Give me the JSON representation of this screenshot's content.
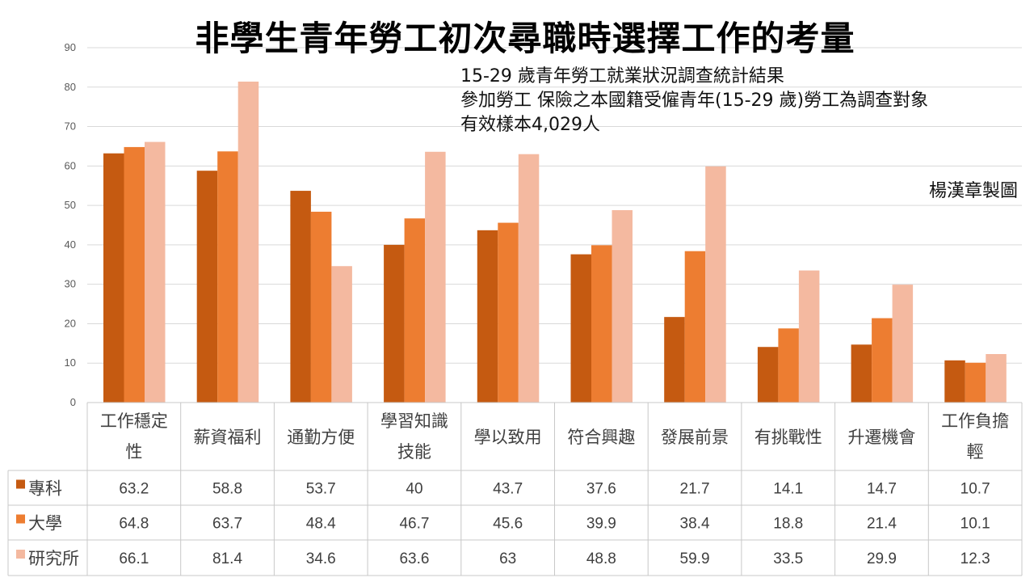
{
  "title": "非學生青年勞工初次尋職時選擇工作的考量",
  "subtitle_lines": [
    "15-29 歲青年勞工就業狀況調查統計結果",
    "參加勞工 保險之本國籍受僱青年(15-29 歲)勞工為調查對象",
    "有效樣本4,029人"
  ],
  "credit": "楊漢章製圖",
  "chart_data": {
    "type": "bar",
    "title": "非學生青年勞工初次尋職時選擇工作的考量",
    "categories": [
      "工作穩定性",
      "薪資福利",
      "通勤方便",
      "學習知識技能",
      "學以致用",
      "符合興趣",
      "發展前景",
      "有挑戰性",
      "升遷機會",
      "工作負擔輕"
    ],
    "category_lines": [
      [
        "工作穩定",
        "性"
      ],
      [
        "薪資福利"
      ],
      [
        "通勤方便"
      ],
      [
        "學習知識",
        "技能"
      ],
      [
        "學以致用"
      ],
      [
        "符合興趣"
      ],
      [
        "發展前景"
      ],
      [
        "有挑戰性"
      ],
      [
        "升遷機會"
      ],
      [
        "工作負擔",
        "輕"
      ]
    ],
    "series": [
      {
        "name": "專科",
        "color": "#C55A11",
        "values": [
          63.2,
          58.8,
          53.7,
          40,
          43.7,
          37.6,
          21.7,
          14.1,
          14.7,
          10.7
        ]
      },
      {
        "name": "大學",
        "color": "#ED7D31",
        "values": [
          64.8,
          63.7,
          48.4,
          46.7,
          45.6,
          39.9,
          38.4,
          18.8,
          21.4,
          10.1
        ]
      },
      {
        "name": "研究所",
        "color": "#F4B9A0",
        "values": [
          66.1,
          81.4,
          34.6,
          63.6,
          63,
          48.8,
          59.9,
          33.5,
          29.9,
          12.3
        ]
      }
    ],
    "ylim": [
      0,
      90
    ],
    "yticks": [
      0,
      10,
      20,
      30,
      40,
      50,
      60,
      70,
      80,
      90
    ],
    "grid": true,
    "legend": "data-table"
  }
}
